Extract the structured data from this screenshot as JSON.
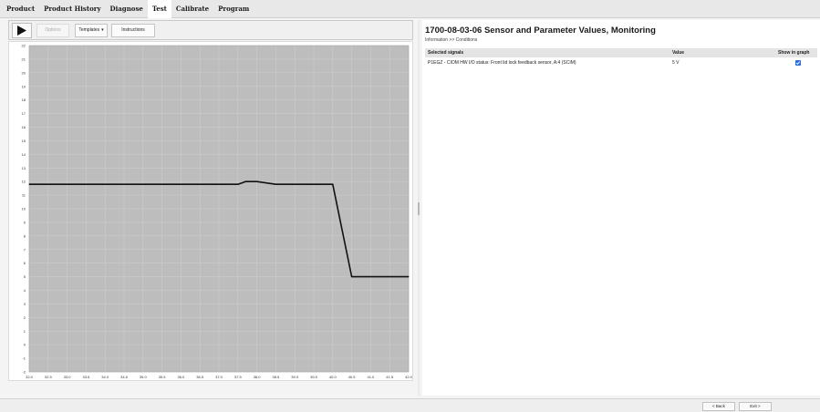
{
  "menu": {
    "items": [
      {
        "label": "Product",
        "active": false
      },
      {
        "label": "Product History",
        "active": false
      },
      {
        "label": "Diagnose",
        "active": false
      },
      {
        "label": "Test",
        "active": true
      },
      {
        "label": "Calibrate",
        "active": false
      },
      {
        "label": "Program",
        "active": false
      }
    ]
  },
  "toolbar": {
    "options_label": "Options",
    "templates_label": "Templates",
    "instructions_label": "Instructions"
  },
  "panel": {
    "title": "1700-08-03-06 Sensor and Parameter Values, Monitoring",
    "breadcrumb": "Information >> Conditions",
    "columns": [
      "Selected signals",
      "Value",
      "Show in graph"
    ],
    "rows": [
      {
        "signal": "P1EGZ - CIOM HW I/O status: Front lid lock feedback sensor, A:4 (SCIM)",
        "value": "5 V",
        "show_in_graph": true
      }
    ]
  },
  "chart_data": {
    "type": "line",
    "x": [
      32.0,
      33.5,
      34.0,
      35.0,
      36.0,
      36.5,
      37.0,
      37.5,
      37.7,
      38.0,
      38.5,
      39.0,
      39.5,
      40.0,
      40.5,
      41.0,
      41.5,
      42.0
    ],
    "series": [
      {
        "name": "CIOM HW I/O status: Front lid lock feedback sensor,...",
        "values": [
          11.8,
          11.8,
          11.8,
          11.8,
          11.8,
          11.8,
          11.8,
          11.8,
          12.0,
          12.0,
          11.8,
          11.8,
          11.8,
          11.8,
          5.0,
          5.0,
          5.0,
          5.0
        ]
      }
    ],
    "xlim": [
      32.0,
      42.0
    ],
    "ylim": [
      -2,
      22
    ],
    "xticks": [
      "32.0",
      "32.5",
      "33.0",
      "33.5",
      "34.0",
      "34.5",
      "35.0",
      "35.5",
      "36.0",
      "36.5",
      "37.0",
      "37.5",
      "38.0",
      "38.5",
      "39.0",
      "39.5",
      "40.0",
      "40.5",
      "41.0",
      "41.5",
      "42.0"
    ],
    "yticks": [
      "22",
      "21",
      "20",
      "19",
      "18",
      "17",
      "16",
      "15",
      "14",
      "13",
      "12",
      "11",
      "10",
      "9",
      "8",
      "7",
      "6",
      "5",
      "4",
      "3",
      "2",
      "1",
      "0",
      "-1",
      "-2"
    ],
    "grid": true,
    "legend_position": "bottom-left",
    "colors": {
      "plot_background": "#bdbdbd",
      "grid": "#cfcfcf",
      "line": "#111111"
    }
  },
  "bottombar": {
    "back_label": "< Back",
    "exit_label": "Exit >"
  }
}
